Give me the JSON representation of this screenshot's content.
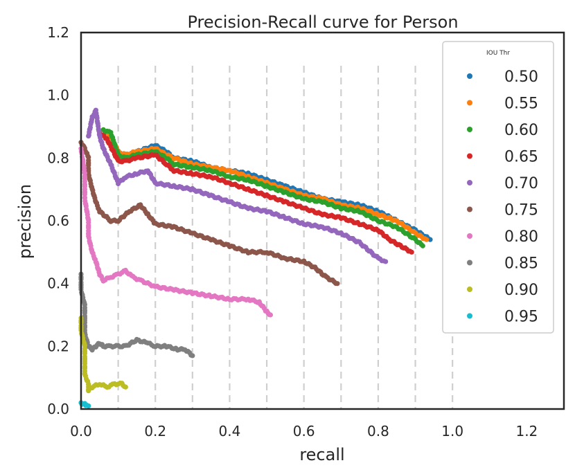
{
  "chart_data": {
    "type": "scatter",
    "title": "Precision-Recall curve for Person",
    "xlabel": "recall",
    "ylabel": "precision",
    "xlim": [
      0.0,
      1.3
    ],
    "ylim": [
      0.0,
      1.2
    ],
    "xticks": [
      "0.0",
      "0.2",
      "0.4",
      "0.6",
      "0.8",
      "1.0",
      "1.2"
    ],
    "yticks": [
      "0.0",
      "0.2",
      "0.4",
      "0.6",
      "0.8",
      "1.0",
      "1.2"
    ],
    "xtick_values": [
      0.0,
      0.2,
      0.4,
      0.6,
      0.8,
      1.0,
      1.2
    ],
    "ytick_values": [
      0.0,
      0.2,
      0.4,
      0.6,
      0.8,
      1.0,
      1.2
    ],
    "vertical_dashed_lines": [
      0.1,
      0.2,
      0.3,
      0.4,
      0.5,
      0.6,
      0.7,
      0.8,
      0.9,
      1.0
    ],
    "grid": "vertical dashed",
    "legend": {
      "title": "IOU Thr",
      "placement": "top-right"
    },
    "series": [
      {
        "name": "0.50",
        "color": "#1f77b4",
        "points": [
          [
            0.06,
            0.89
          ],
          [
            0.08,
            0.87
          ],
          [
            0.1,
            0.82
          ],
          [
            0.12,
            0.81
          ],
          [
            0.15,
            0.82
          ],
          [
            0.2,
            0.84
          ],
          [
            0.23,
            0.82
          ],
          [
            0.25,
            0.8
          ],
          [
            0.3,
            0.79
          ],
          [
            0.35,
            0.77
          ],
          [
            0.4,
            0.76
          ],
          [
            0.45,
            0.75
          ],
          [
            0.5,
            0.73
          ],
          [
            0.55,
            0.71
          ],
          [
            0.6,
            0.69
          ],
          [
            0.65,
            0.67
          ],
          [
            0.7,
            0.66
          ],
          [
            0.75,
            0.65
          ],
          [
            0.8,
            0.63
          ],
          [
            0.85,
            0.6
          ],
          [
            0.9,
            0.57
          ],
          [
            0.94,
            0.54
          ]
        ]
      },
      {
        "name": "0.55",
        "color": "#ff7f0e",
        "points": [
          [
            0.06,
            0.89
          ],
          [
            0.08,
            0.87
          ],
          [
            0.1,
            0.82
          ],
          [
            0.12,
            0.81
          ],
          [
            0.15,
            0.82
          ],
          [
            0.2,
            0.83
          ],
          [
            0.23,
            0.81
          ],
          [
            0.25,
            0.8
          ],
          [
            0.3,
            0.78
          ],
          [
            0.35,
            0.77
          ],
          [
            0.4,
            0.76
          ],
          [
            0.45,
            0.74
          ],
          [
            0.5,
            0.72
          ],
          [
            0.55,
            0.7
          ],
          [
            0.6,
            0.68
          ],
          [
            0.65,
            0.67
          ],
          [
            0.7,
            0.65
          ],
          [
            0.75,
            0.64
          ],
          [
            0.8,
            0.62
          ],
          [
            0.85,
            0.6
          ],
          [
            0.9,
            0.56
          ],
          [
            0.93,
            0.54
          ]
        ]
      },
      {
        "name": "0.60",
        "color": "#2ca02c",
        "points": [
          [
            0.06,
            0.89
          ],
          [
            0.08,
            0.88
          ],
          [
            0.1,
            0.81
          ],
          [
            0.12,
            0.8
          ],
          [
            0.15,
            0.81
          ],
          [
            0.2,
            0.82
          ],
          [
            0.23,
            0.8
          ],
          [
            0.25,
            0.78
          ],
          [
            0.3,
            0.77
          ],
          [
            0.35,
            0.76
          ],
          [
            0.4,
            0.74
          ],
          [
            0.45,
            0.73
          ],
          [
            0.5,
            0.71
          ],
          [
            0.55,
            0.69
          ],
          [
            0.6,
            0.67
          ],
          [
            0.65,
            0.66
          ],
          [
            0.7,
            0.64
          ],
          [
            0.75,
            0.63
          ],
          [
            0.8,
            0.6
          ],
          [
            0.85,
            0.58
          ],
          [
            0.9,
            0.54
          ],
          [
            0.92,
            0.52
          ]
        ]
      },
      {
        "name": "0.65",
        "color": "#d62728",
        "points": [
          [
            0.05,
            0.88
          ],
          [
            0.07,
            0.86
          ],
          [
            0.1,
            0.79
          ],
          [
            0.12,
            0.79
          ],
          [
            0.15,
            0.8
          ],
          [
            0.2,
            0.81
          ],
          [
            0.23,
            0.78
          ],
          [
            0.25,
            0.76
          ],
          [
            0.3,
            0.75
          ],
          [
            0.35,
            0.74
          ],
          [
            0.4,
            0.72
          ],
          [
            0.45,
            0.7
          ],
          [
            0.5,
            0.68
          ],
          [
            0.55,
            0.66
          ],
          [
            0.6,
            0.64
          ],
          [
            0.65,
            0.62
          ],
          [
            0.7,
            0.61
          ],
          [
            0.75,
            0.59
          ],
          [
            0.8,
            0.57
          ],
          [
            0.83,
            0.54
          ],
          [
            0.86,
            0.52
          ],
          [
            0.89,
            0.5
          ]
        ]
      },
      {
        "name": "0.70",
        "color": "#9467bd",
        "points": [
          [
            0.02,
            0.87
          ],
          [
            0.03,
            0.93
          ],
          [
            0.04,
            0.95
          ],
          [
            0.05,
            0.87
          ],
          [
            0.06,
            0.83
          ],
          [
            0.08,
            0.78
          ],
          [
            0.1,
            0.72
          ],
          [
            0.12,
            0.74
          ],
          [
            0.15,
            0.75
          ],
          [
            0.18,
            0.76
          ],
          [
            0.2,
            0.72
          ],
          [
            0.25,
            0.71
          ],
          [
            0.3,
            0.7
          ],
          [
            0.35,
            0.68
          ],
          [
            0.4,
            0.66
          ],
          [
            0.45,
            0.64
          ],
          [
            0.5,
            0.63
          ],
          [
            0.55,
            0.61
          ],
          [
            0.6,
            0.59
          ],
          [
            0.65,
            0.58
          ],
          [
            0.7,
            0.56
          ],
          [
            0.75,
            0.53
          ],
          [
            0.8,
            0.48
          ],
          [
            0.82,
            0.47
          ]
        ]
      },
      {
        "name": "0.75",
        "color": "#8c564b",
        "points": [
          [
            0.0,
            0.85
          ],
          [
            0.01,
            0.83
          ],
          [
            0.02,
            0.8
          ],
          [
            0.02,
            0.75
          ],
          [
            0.03,
            0.7
          ],
          [
            0.04,
            0.66
          ],
          [
            0.05,
            0.63
          ],
          [
            0.08,
            0.6
          ],
          [
            0.1,
            0.6
          ],
          [
            0.13,
            0.63
          ],
          [
            0.16,
            0.65
          ],
          [
            0.18,
            0.62
          ],
          [
            0.2,
            0.59
          ],
          [
            0.25,
            0.58
          ],
          [
            0.3,
            0.56
          ],
          [
            0.35,
            0.54
          ],
          [
            0.4,
            0.52
          ],
          [
            0.45,
            0.5
          ],
          [
            0.5,
            0.5
          ],
          [
            0.55,
            0.48
          ],
          [
            0.6,
            0.47
          ],
          [
            0.63,
            0.45
          ],
          [
            0.66,
            0.42
          ],
          [
            0.69,
            0.4
          ]
        ]
      },
      {
        "name": "0.80",
        "color": "#e377c2",
        "points": [
          [
            0.0,
            0.83
          ],
          [
            0.01,
            0.75
          ],
          [
            0.01,
            0.67
          ],
          [
            0.02,
            0.6
          ],
          [
            0.02,
            0.55
          ],
          [
            0.03,
            0.5
          ],
          [
            0.04,
            0.47
          ],
          [
            0.05,
            0.43
          ],
          [
            0.06,
            0.41
          ],
          [
            0.08,
            0.42
          ],
          [
            0.1,
            0.43
          ],
          [
            0.12,
            0.44
          ],
          [
            0.14,
            0.42
          ],
          [
            0.16,
            0.41
          ],
          [
            0.2,
            0.39
          ],
          [
            0.25,
            0.38
          ],
          [
            0.3,
            0.37
          ],
          [
            0.35,
            0.36
          ],
          [
            0.4,
            0.35
          ],
          [
            0.45,
            0.35
          ],
          [
            0.48,
            0.34
          ],
          [
            0.5,
            0.31
          ],
          [
            0.51,
            0.3
          ]
        ]
      },
      {
        "name": "0.85",
        "color": "#7f7f7f",
        "points": [
          [
            0.0,
            0.43
          ],
          [
            0.0,
            0.38
          ],
          [
            0.01,
            0.33
          ],
          [
            0.01,
            0.28
          ],
          [
            0.01,
            0.24
          ],
          [
            0.02,
            0.2
          ],
          [
            0.03,
            0.19
          ],
          [
            0.04,
            0.2
          ],
          [
            0.05,
            0.21
          ],
          [
            0.06,
            0.2
          ],
          [
            0.08,
            0.2
          ],
          [
            0.1,
            0.2
          ],
          [
            0.12,
            0.2
          ],
          [
            0.15,
            0.22
          ],
          [
            0.18,
            0.21
          ],
          [
            0.2,
            0.2
          ],
          [
            0.23,
            0.2
          ],
          [
            0.26,
            0.19
          ],
          [
            0.28,
            0.19
          ],
          [
            0.3,
            0.17
          ]
        ]
      },
      {
        "name": "0.90",
        "color": "#bcbd22",
        "points": [
          [
            0.0,
            0.29
          ],
          [
            0.0,
            0.25
          ],
          [
            0.01,
            0.2
          ],
          [
            0.01,
            0.15
          ],
          [
            0.01,
            0.11
          ],
          [
            0.02,
            0.08
          ],
          [
            0.02,
            0.06
          ],
          [
            0.03,
            0.07
          ],
          [
            0.05,
            0.08
          ],
          [
            0.07,
            0.07
          ],
          [
            0.09,
            0.08
          ],
          [
            0.11,
            0.08
          ],
          [
            0.12,
            0.07
          ]
        ]
      },
      {
        "name": "0.95",
        "color": "#17becf",
        "points": [
          [
            0.0,
            0.02
          ],
          [
            0.005,
            0.015
          ],
          [
            0.01,
            0.015
          ],
          [
            0.015,
            0.01
          ],
          [
            0.02,
            0.01
          ]
        ]
      }
    ]
  }
}
